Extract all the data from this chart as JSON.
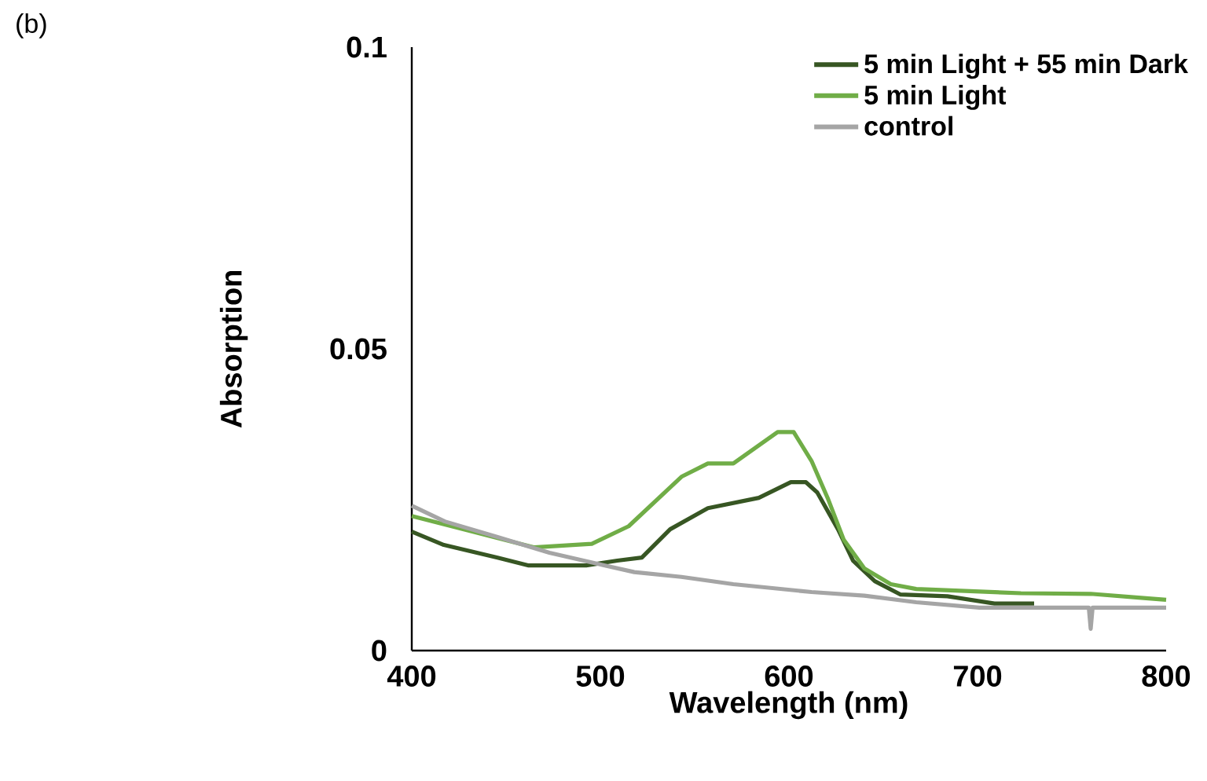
{
  "chart_data": {
    "type": "line",
    "xlabel": "Wavelength (nm)",
    "ylabel": "Absorption",
    "annotations": [
      "(b)"
    ],
    "xlim": [
      400,
      800
    ],
    "ylim": [
      0,
      0.1
    ],
    "xticks": [
      400,
      500,
      600,
      700,
      800
    ],
    "yticks": [
      0,
      0.05,
      0.1
    ],
    "grid": false,
    "legend": "top right",
    "series": [
      {
        "name": "5 min Light + 55 min Dark",
        "color": "#375623",
        "x": [
          400,
          417,
          445.5,
          462,
          492.5,
          509,
          522,
          537,
          557,
          584,
          601,
          609,
          615,
          626,
          634,
          645.5,
          659,
          684,
          709,
          730
        ],
        "values": [
          0.0197,
          0.0175,
          0.0154,
          0.0141,
          0.0141,
          0.0149,
          0.0154,
          0.0201,
          0.0236,
          0.0253,
          0.0279,
          0.0279,
          0.0262,
          0.0201,
          0.0149,
          0.0115,
          0.0093,
          0.009,
          0.0078,
          0.0078
        ]
      },
      {
        "name": "5 min Light",
        "color": "#70ad47",
        "x": [
          400,
          465,
          495.5,
          515,
          543,
          557,
          570.5,
          584,
          594,
          602.5,
          612,
          620.5,
          629,
          640,
          654,
          667.5,
          723,
          760,
          800
        ],
        "values": [
          0.0223,
          0.0171,
          0.0177,
          0.0206,
          0.0288,
          0.031,
          0.031,
          0.034,
          0.0362,
          0.0362,
          0.0314,
          0.0253,
          0.0184,
          0.0136,
          0.011,
          0.0102,
          0.0095,
          0.0094,
          0.0084
        ]
      },
      {
        "name": "control",
        "color": "#a5a5a5",
        "x": [
          400,
          417.5,
          445.5,
          473,
          501,
          518,
          543,
          570.5,
          612,
          640,
          667.5,
          701,
          759,
          760,
          761,
          800
        ],
        "values": [
          0.024,
          0.0214,
          0.0188,
          0.0162,
          0.0142,
          0.013,
          0.0122,
          0.011,
          0.0097,
          0.0091,
          0.008,
          0.0071,
          0.0071,
          0.0036,
          0.0071,
          0.0071
        ]
      }
    ]
  }
}
